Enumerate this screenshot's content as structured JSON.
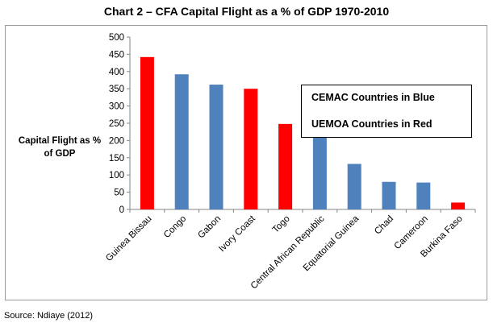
{
  "chart_data": {
    "type": "bar",
    "title": "Chart 2 – CFA Capital Flight as a % of GDP 1970-2010",
    "ylabel": "Capital Flight as % of GDP",
    "xlabel": "",
    "ylim": [
      0,
      500
    ],
    "yticks": [
      0,
      50,
      100,
      150,
      200,
      250,
      300,
      350,
      400,
      450,
      500
    ],
    "grid": false,
    "categories": [
      "Guinea Bissau",
      "Congo",
      "Gabon",
      "Ivory Coast",
      "Togo",
      "Central African Republic",
      "Equatorial Guinea",
      "Chad",
      "Cameroon",
      "Burkina Faso"
    ],
    "values": [
      442,
      392,
      362,
      350,
      248,
      213,
      132,
      80,
      78,
      20
    ],
    "groups": [
      "UEMOA",
      "CEMAC",
      "CEMAC",
      "UEMOA",
      "UEMOA",
      "CEMAC",
      "CEMAC",
      "CEMAC",
      "CEMAC",
      "UEMOA"
    ],
    "colors": {
      "CEMAC": "#4f81bd",
      "UEMOA": "#ff0000"
    },
    "legend": {
      "placement": "top-right",
      "lines": [
        "CEMAC Countries in Blue",
        "UEMOA Countries in Red"
      ]
    }
  },
  "source": "Source: Ndiaye (2012)"
}
